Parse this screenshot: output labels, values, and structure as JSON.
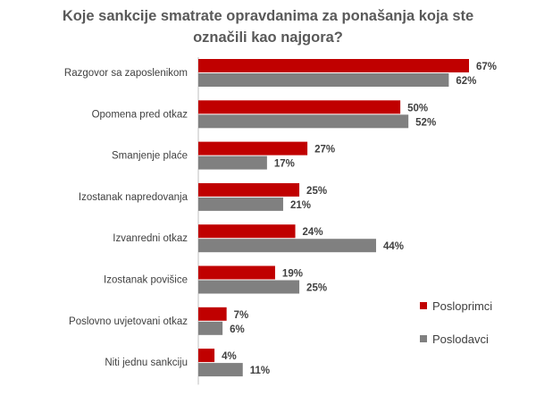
{
  "chart_data": {
    "type": "bar",
    "orientation": "horizontal",
    "title_line1": "Koje sankcije smatrate opravdanima za ponašanja koja ste",
    "title_line2": "označili kao najgora?",
    "categories": [
      "Razgovor sa zaposlenikom",
      "Opomena pred otkaz",
      "Smanjenje plaće",
      "Izostanak napredovanja",
      "Izvanredni otkaz",
      "Izostanak povišice",
      "Poslovno uvjetovani otkaz",
      "Niti jednu sankciju"
    ],
    "series": [
      {
        "name": "Poslodavci",
        "values": [
          62,
          52,
          17,
          21,
          44,
          25,
          6,
          11
        ],
        "color": "#808080"
      },
      {
        "name": "Posloprimci",
        "values": [
          67,
          50,
          27,
          25,
          24,
          19,
          7,
          4
        ],
        "color": "#c00000"
      }
    ],
    "value_suffix": "%",
    "xlim": [
      0,
      67
    ],
    "legend_position": "right",
    "grid": false
  }
}
